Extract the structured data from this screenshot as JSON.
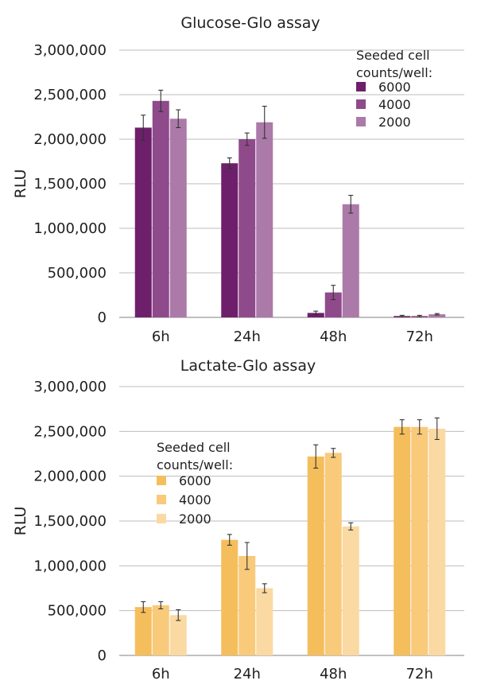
{
  "chart_data": [
    {
      "type": "bar",
      "title": "Glucose-Glo assay",
      "ylabel": "RLU",
      "xlabel": "",
      "categories": [
        "6h",
        "24h",
        "48h",
        "72h"
      ],
      "ylim": [
        0,
        3000000
      ],
      "yticks": [
        0,
        500000,
        1000000,
        1500000,
        2000000,
        2500000,
        3000000
      ],
      "ytick_labels": [
        "0",
        "500,000",
        "1,000,000",
        "1,500,000",
        "2,000,000",
        "2,500,000",
        "3,000,000"
      ],
      "grid": true,
      "legend": {
        "title_lines": [
          "Seeded cell",
          "counts/well:"
        ],
        "position": "top-right"
      },
      "series": [
        {
          "name": "6000",
          "color": "#6e1f6c",
          "values": [
            2130000,
            1730000,
            50000,
            15000
          ],
          "errors": [
            140000,
            60000,
            20000,
            8000
          ]
        },
        {
          "name": "4000",
          "color": "#8f4a8c",
          "values": [
            2430000,
            2000000,
            280000,
            15000
          ],
          "errors": [
            120000,
            70000,
            80000,
            8000
          ]
        },
        {
          "name": "2000",
          "color": "#ab7aa8",
          "values": [
            2230000,
            2190000,
            1270000,
            35000
          ],
          "errors": [
            100000,
            180000,
            100000,
            8000
          ]
        }
      ]
    },
    {
      "type": "bar",
      "title": "Lactate-Glo assay",
      "ylabel": "RLU",
      "xlabel": "",
      "categories": [
        "6h",
        "24h",
        "48h",
        "72h"
      ],
      "ylim": [
        0,
        3000000
      ],
      "yticks": [
        0,
        500000,
        1000000,
        1500000,
        2000000,
        2500000,
        3000000
      ],
      "ytick_labels": [
        "0",
        "500,000",
        "1,000,000",
        "1,500,000",
        "2,000,000",
        "2,500,000",
        "3,000,000"
      ],
      "grid": true,
      "legend": {
        "title_lines": [
          "Seeded cell",
          "counts/well:"
        ],
        "position": "top-left"
      },
      "series": [
        {
          "name": "6000",
          "color": "#f5be5c",
          "values": [
            540000,
            1290000,
            2220000,
            2550000
          ],
          "errors": [
            60000,
            60000,
            130000,
            80000
          ]
        },
        {
          "name": "4000",
          "color": "#f8ca7a",
          "values": [
            560000,
            1110000,
            2260000,
            2550000
          ],
          "errors": [
            40000,
            150000,
            50000,
            80000
          ]
        },
        {
          "name": "2000",
          "color": "#fad9a2",
          "values": [
            450000,
            750000,
            1440000,
            2530000
          ],
          "errors": [
            60000,
            50000,
            40000,
            120000
          ]
        }
      ]
    }
  ]
}
